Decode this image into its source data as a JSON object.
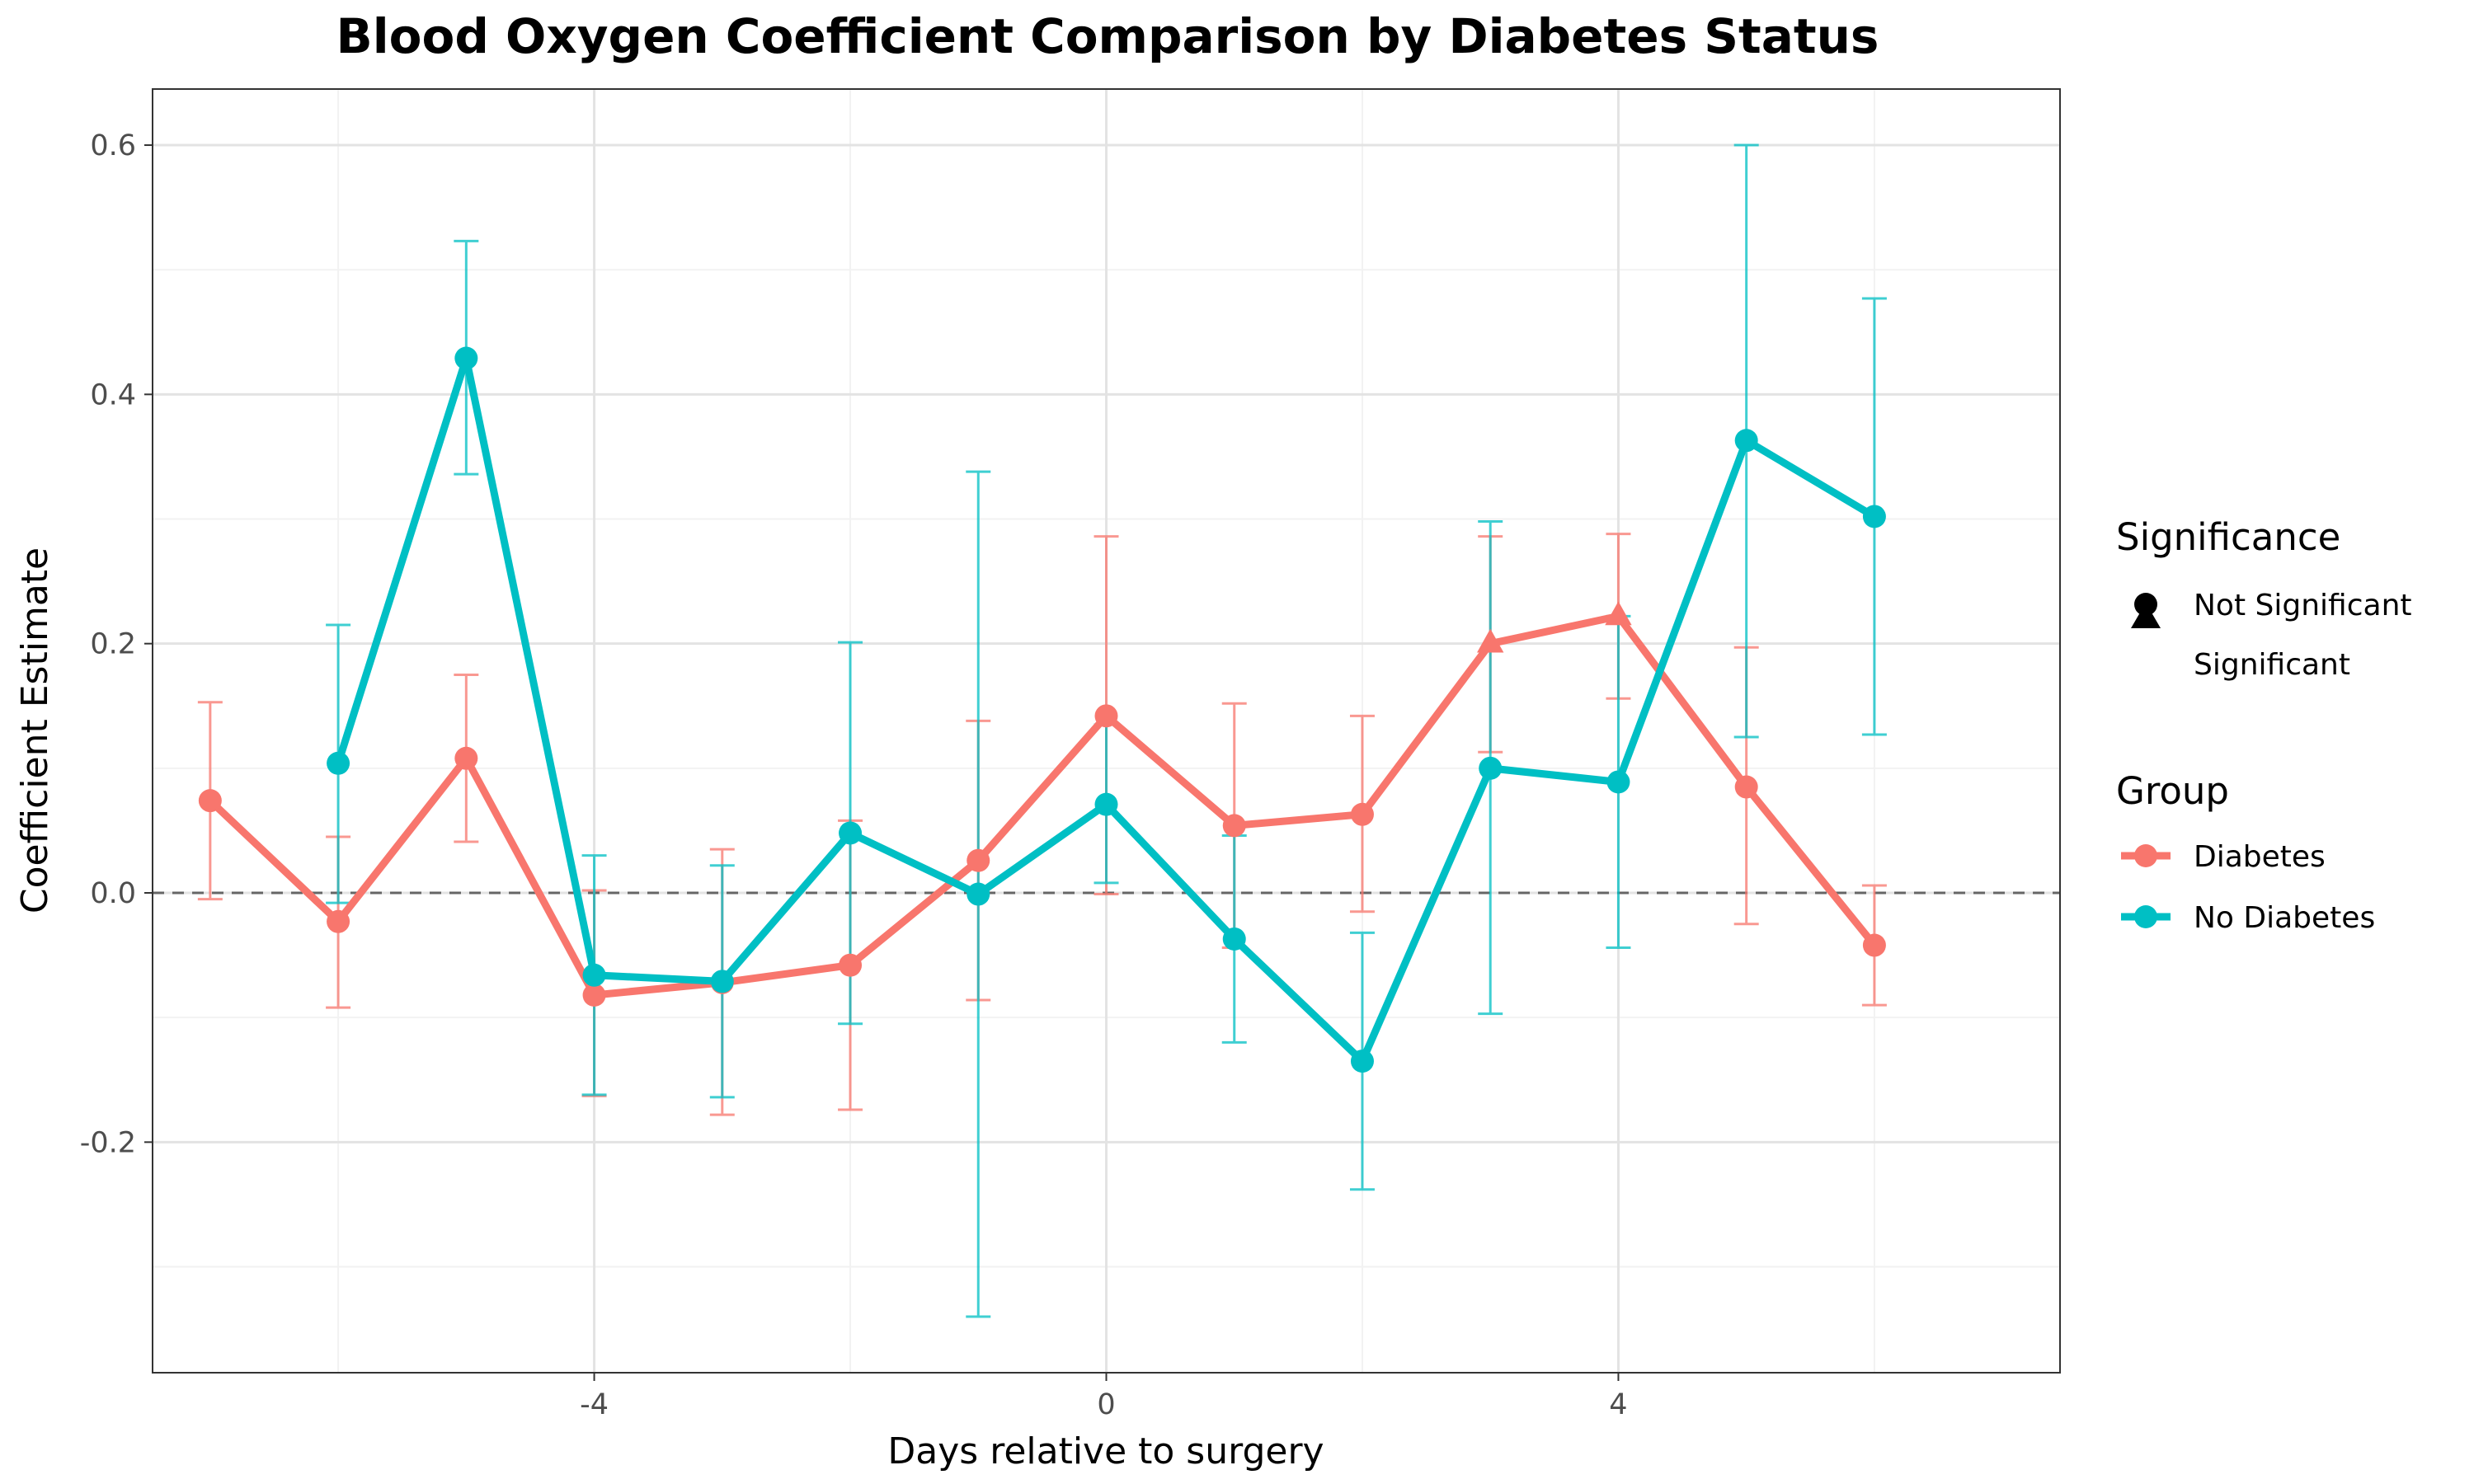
{
  "chart_data": {
    "type": "line",
    "title": "Blood Oxygen Coefficient Comparison by Diabetes Status",
    "xlabel": "Days relative to surgery",
    "ylabel": "Coefficient Estimate",
    "xlim": [
      -7.45,
      7.45
    ],
    "ylim": [
      -0.385,
      0.645
    ],
    "x_ticks": [
      -4,
      0,
      4
    ],
    "x_tick_labels": [
      "-4",
      "0",
      "4"
    ],
    "y_ticks": [
      -0.2,
      0.0,
      0.2,
      0.4,
      0.6
    ],
    "y_tick_labels": [
      "-0.2",
      "0.0",
      "0.2",
      "0.4",
      "0.6"
    ],
    "reference_line_y": 0,
    "grid": true,
    "legend_position": "right",
    "legends": {
      "significance": {
        "title": "Significance",
        "entries": [
          {
            "label": "Not Significant",
            "shape": "circle"
          },
          {
            "label": "Significant",
            "shape": "triangle"
          }
        ]
      },
      "group": {
        "title": "Group",
        "entries": [
          "Diabetes",
          "No Diabetes"
        ]
      }
    },
    "series": [
      {
        "name": "Diabetes",
        "color": "#F8766D",
        "points": [
          {
            "x": -7,
            "y": 0.074,
            "lo": -0.005,
            "hi": 0.153,
            "sig": false
          },
          {
            "x": -6,
            "y": -0.023,
            "lo": -0.092,
            "hi": 0.045,
            "sig": false
          },
          {
            "x": -5,
            "y": 0.108,
            "lo": 0.041,
            "hi": 0.175,
            "sig": false
          },
          {
            "x": -4,
            "y": -0.082,
            "lo": -0.163,
            "hi": 0.002,
            "sig": false
          },
          {
            "x": -3,
            "y": -0.072,
            "lo": -0.178,
            "hi": 0.035,
            "sig": false
          },
          {
            "x": -2,
            "y": -0.058,
            "lo": -0.174,
            "hi": 0.058,
            "sig": false
          },
          {
            "x": -1,
            "y": 0.026,
            "lo": -0.086,
            "hi": 0.138,
            "sig": false
          },
          {
            "x": 0,
            "y": 0.142,
            "lo": -0.001,
            "hi": 0.286,
            "sig": false
          },
          {
            "x": 1,
            "y": 0.054,
            "lo": -0.044,
            "hi": 0.152,
            "sig": false
          },
          {
            "x": 2,
            "y": 0.063,
            "lo": -0.015,
            "hi": 0.142,
            "sig": false
          },
          {
            "x": 3,
            "y": 0.2,
            "lo": 0.113,
            "hi": 0.286,
            "sig": true
          },
          {
            "x": 4,
            "y": 0.222,
            "lo": 0.156,
            "hi": 0.288,
            "sig": true
          },
          {
            "x": 5,
            "y": 0.085,
            "lo": -0.025,
            "hi": 0.197,
            "sig": false
          },
          {
            "x": 6,
            "y": -0.042,
            "lo": -0.09,
            "hi": 0.006,
            "sig": false
          }
        ]
      },
      {
        "name": "No Diabetes",
        "color": "#00BFC4",
        "points": [
          {
            "x": -6,
            "y": 0.104,
            "lo": -0.008,
            "hi": 0.215,
            "sig": false
          },
          {
            "x": -5,
            "y": 0.429,
            "lo": 0.336,
            "hi": 0.523,
            "sig": false
          },
          {
            "x": -4,
            "y": -0.066,
            "lo": -0.162,
            "hi": 0.03,
            "sig": false
          },
          {
            "x": -3,
            "y": -0.071,
            "lo": -0.164,
            "hi": 0.022,
            "sig": false
          },
          {
            "x": -2,
            "y": 0.048,
            "lo": -0.105,
            "hi": 0.201,
            "sig": false
          },
          {
            "x": -1,
            "y": -0.001,
            "lo": -0.34,
            "hi": 0.338,
            "sig": false
          },
          {
            "x": 0,
            "y": 0.071,
            "lo": 0.008,
            "hi": 0.135,
            "sig": false
          },
          {
            "x": 1,
            "y": -0.037,
            "lo": -0.12,
            "hi": 0.046,
            "sig": false
          },
          {
            "x": 2,
            "y": -0.135,
            "lo": -0.238,
            "hi": -0.032,
            "sig": false
          },
          {
            "x": 3,
            "y": 0.1,
            "lo": -0.097,
            "hi": 0.298,
            "sig": false
          },
          {
            "x": 4,
            "y": 0.089,
            "lo": -0.044,
            "hi": 0.222,
            "sig": false
          },
          {
            "x": 5,
            "y": 0.363,
            "lo": 0.125,
            "hi": 0.6,
            "sig": false
          },
          {
            "x": 6,
            "y": 0.302,
            "lo": 0.127,
            "hi": 0.477,
            "sig": false
          }
        ]
      }
    ]
  }
}
